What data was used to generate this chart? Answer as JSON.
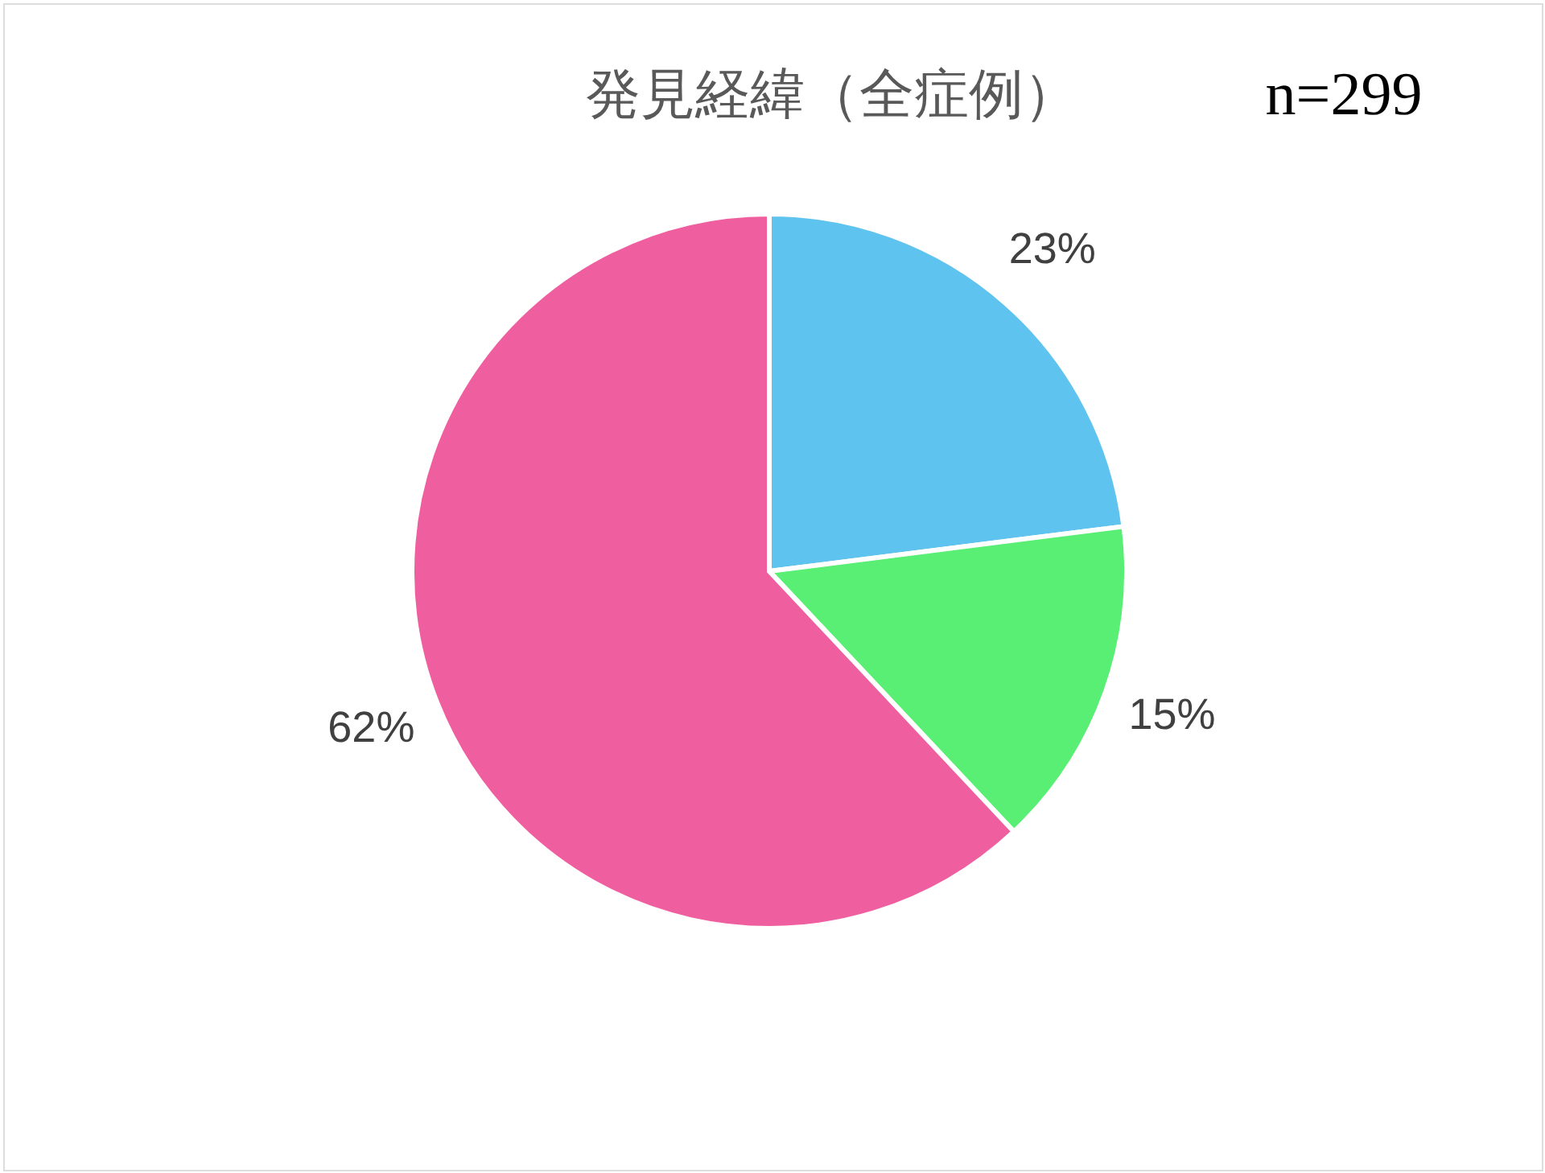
{
  "chart_data": {
    "type": "pie",
    "title": "発見経緯（全症例）",
    "annotations": [
      "n=299"
    ],
    "categories": [
      null,
      null,
      null
    ],
    "values": [
      23,
      15,
      62
    ],
    "colors": [
      "#5ec3ef",
      "#58ef74",
      "#ef5fa0"
    ],
    "value_labels": [
      "23%",
      "15%",
      "62%"
    ]
  }
}
